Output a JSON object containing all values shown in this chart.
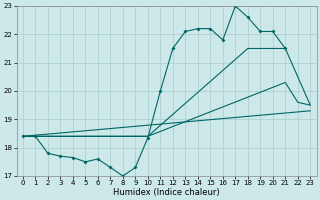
{
  "xlabel": "Humidex (Indice chaleur)",
  "bg_color": "#cce8e8",
  "grid_color": "#aacaca",
  "line_color": "#006666",
  "xlim": [
    -0.5,
    23.5
  ],
  "ylim": [
    17,
    23
  ],
  "yticks": [
    17,
    18,
    19,
    20,
    21,
    22,
    23
  ],
  "xticks": [
    0,
    1,
    2,
    3,
    4,
    5,
    6,
    7,
    8,
    9,
    10,
    11,
    12,
    13,
    14,
    15,
    16,
    17,
    18,
    19,
    20,
    21,
    22,
    23
  ],
  "line1_x": [
    0,
    1,
    2,
    3,
    4,
    5,
    6,
    7,
    8,
    9,
    10,
    11,
    12,
    13,
    14,
    15,
    16,
    17,
    18,
    19,
    20,
    21
  ],
  "line1_y": [
    18.4,
    18.4,
    17.8,
    17.7,
    17.65,
    17.5,
    17.6,
    17.3,
    17.0,
    17.3,
    18.35,
    20.0,
    21.5,
    22.1,
    22.2,
    22.2,
    21.8,
    23.0,
    22.6,
    22.1,
    22.1,
    21.5
  ],
  "line2_x": [
    0,
    10,
    21,
    22,
    23
  ],
  "line2_y": [
    18.4,
    18.4,
    20.3,
    19.6,
    19.5
  ],
  "line3_x": [
    0,
    10,
    18,
    21,
    23
  ],
  "line3_y": [
    18.4,
    18.4,
    21.5,
    21.5,
    19.5
  ],
  "line4_x": [
    0,
    23
  ],
  "line4_y": [
    18.4,
    19.3
  ]
}
